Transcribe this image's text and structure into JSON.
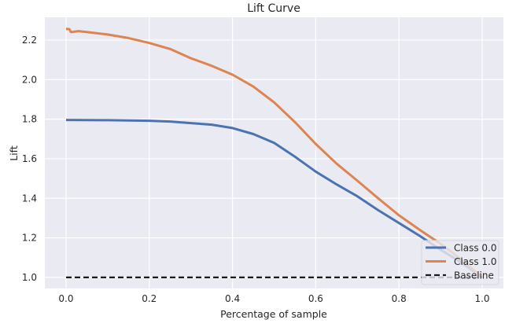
{
  "chart_data": {
    "type": "line",
    "title": "Lift Curve",
    "xlabel": "Percentage of sample",
    "ylabel": "Lift",
    "xlim": [
      -0.051,
      1.051
    ],
    "ylim": [
      0.944,
      2.315
    ],
    "xticks": [
      0.0,
      0.2,
      0.4,
      0.6,
      0.8,
      1.0
    ],
    "xtick_labels": [
      "0.0",
      "0.2",
      "0.4",
      "0.6",
      "0.8",
      "1.0"
    ],
    "yticks": [
      1.0,
      1.2,
      1.4,
      1.6,
      1.8,
      2.0,
      2.2
    ],
    "ytick_labels": [
      "1.0",
      "1.2",
      "1.4",
      "1.6",
      "1.8",
      "2.0",
      "2.2"
    ],
    "grid": true,
    "background": "#eaeaf2",
    "legend_position": "lower-right",
    "series": [
      {
        "name": "Class 0.0",
        "color": "#4c72b0",
        "style": "solid",
        "x": [
          0.0,
          0.1,
          0.2,
          0.25,
          0.3,
          0.35,
          0.4,
          0.45,
          0.5,
          0.55,
          0.6,
          0.65,
          0.7,
          0.75,
          0.8,
          0.85,
          0.9,
          0.95,
          1.0
        ],
        "y": [
          1.796,
          1.795,
          1.792,
          1.788,
          1.78,
          1.772,
          1.755,
          1.725,
          1.68,
          1.61,
          1.535,
          1.47,
          1.41,
          1.34,
          1.275,
          1.21,
          1.14,
          1.075,
          1.0
        ]
      },
      {
        "name": "Class 1.0",
        "color": "#dd8452",
        "style": "solid",
        "x": [
          0.0,
          0.008,
          0.012,
          0.03,
          0.06,
          0.1,
          0.15,
          0.2,
          0.25,
          0.3,
          0.35,
          0.4,
          0.45,
          0.5,
          0.55,
          0.6,
          0.65,
          0.7,
          0.75,
          0.8,
          0.85,
          0.9,
          0.95,
          1.0
        ],
        "y": [
          2.256,
          2.255,
          2.24,
          2.245,
          2.238,
          2.228,
          2.21,
          2.185,
          2.155,
          2.108,
          2.07,
          2.025,
          1.965,
          1.885,
          1.785,
          1.675,
          1.575,
          1.489,
          1.4,
          1.314,
          1.24,
          1.17,
          1.09,
          1.0
        ]
      },
      {
        "name": "Baseline",
        "color": "#1a1a1a",
        "style": "dashed",
        "x": [
          0.0,
          1.0
        ],
        "y": [
          1.0,
          1.0
        ]
      }
    ]
  }
}
